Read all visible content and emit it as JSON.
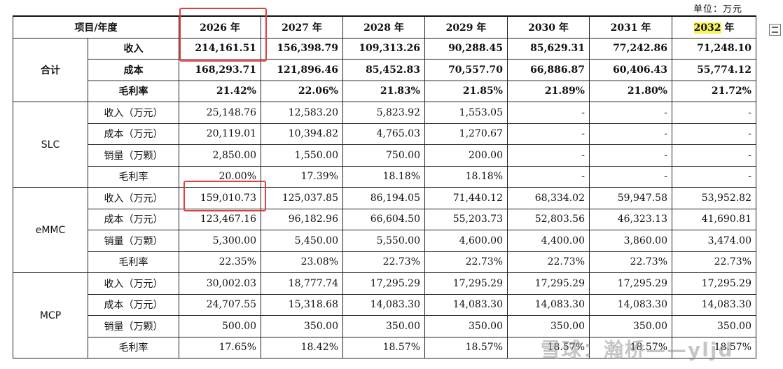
{
  "unit_label": "单位：万元",
  "header": {
    "corner": "项目/年度",
    "year_num_2032": "2032",
    "year_suffix_2032": " 年",
    "years": [
      "2026 年",
      "2027 年",
      "2028 年",
      "2029 年",
      "2030 年",
      "2031 年"
    ]
  },
  "total": {
    "group": "合计",
    "rows": [
      {
        "label": "收入",
        "values": [
          "214,161.51",
          "156,398.79",
          "109,313.26",
          "90,288.45",
          "85,629.31",
          "77,242.86",
          "71,248.10"
        ]
      },
      {
        "label": "成本",
        "values": [
          "168,293.71",
          "121,896.46",
          "85,452.83",
          "70,557.70",
          "66,886.87",
          "60,406.43",
          "55,774.12"
        ]
      },
      {
        "label": "毛利率",
        "values": [
          "21.42%",
          "22.06%",
          "21.83%",
          "21.85%",
          "21.89%",
          "21.80%",
          "21.72%"
        ]
      }
    ]
  },
  "slc": {
    "group": "SLC",
    "rows": [
      {
        "label": "收入（万元）",
        "values": [
          "25,148.76",
          "12,583.20",
          "5,823.92",
          "1,553.05",
          "-",
          "-",
          "-"
        ]
      },
      {
        "label": "成本（万元）",
        "values": [
          "20,119.01",
          "10,394.82",
          "4,765.03",
          "1,270.67",
          "-",
          "-",
          "-"
        ]
      },
      {
        "label": "销量（万颗）",
        "values": [
          "2,850.00",
          "1,550.00",
          "750.00",
          "200.00",
          "-",
          "-",
          "-"
        ]
      },
      {
        "label": "毛利率",
        "values": [
          "20.00%",
          "17.39%",
          "18.18%",
          "18.18%",
          "-",
          "-",
          "-"
        ]
      }
    ]
  },
  "emmc": {
    "group": "eMMC",
    "rows": [
      {
        "label": "收入（万元）",
        "values": [
          "159,010.73",
          "125,037.85",
          "86,194.05",
          "71,440.12",
          "68,334.02",
          "59,947.58",
          "53,952.82"
        ]
      },
      {
        "label": "成本（万元）",
        "values": [
          "123,467.16",
          "96,182.96",
          "66,604.50",
          "55,203.73",
          "52,803.56",
          "46,323.13",
          "41,690.81"
        ]
      },
      {
        "label": "销量（万颗）",
        "values": [
          "5,300.00",
          "5,450.00",
          "5,550.00",
          "4,600.00",
          "4,400.00",
          "3,860.00",
          "3,474.00"
        ]
      },
      {
        "label": "毛利率",
        "values": [
          "22.35%",
          "23.08%",
          "22.73%",
          "22.73%",
          "22.73%",
          "22.73%",
          "22.73%"
        ]
      }
    ]
  },
  "mcp": {
    "group": "MCP",
    "rows": [
      {
        "label": "收入（万元）",
        "values": [
          "30,002.03",
          "18,777.74",
          "17,295.29",
          "17,295.29",
          "17,295.29",
          "17,295.29",
          "17,295.29"
        ]
      },
      {
        "label": "成本（万元）",
        "values": [
          "24,707.55",
          "15,318.68",
          "14,083.30",
          "14,083.30",
          "14,083.30",
          "14,083.30",
          "14,083.30"
        ]
      },
      {
        "label": "销量（万颗）",
        "values": [
          "500.00",
          "350.00",
          "350.00",
          "350.00",
          "350.00",
          "350.00",
          "350.00"
        ]
      },
      {
        "label": "毛利率",
        "values": [
          "17.65%",
          "18.42%",
          "18.57%",
          "18.57%",
          "18.57%",
          "18.57%",
          "18.57%"
        ]
      }
    ]
  },
  "watermark": "雪球：瀚桥——yljd",
  "colors": {
    "highlight_box": "#e0403e",
    "year_highlight": "#f6f25a"
  },
  "side_icon": "table-icon"
}
